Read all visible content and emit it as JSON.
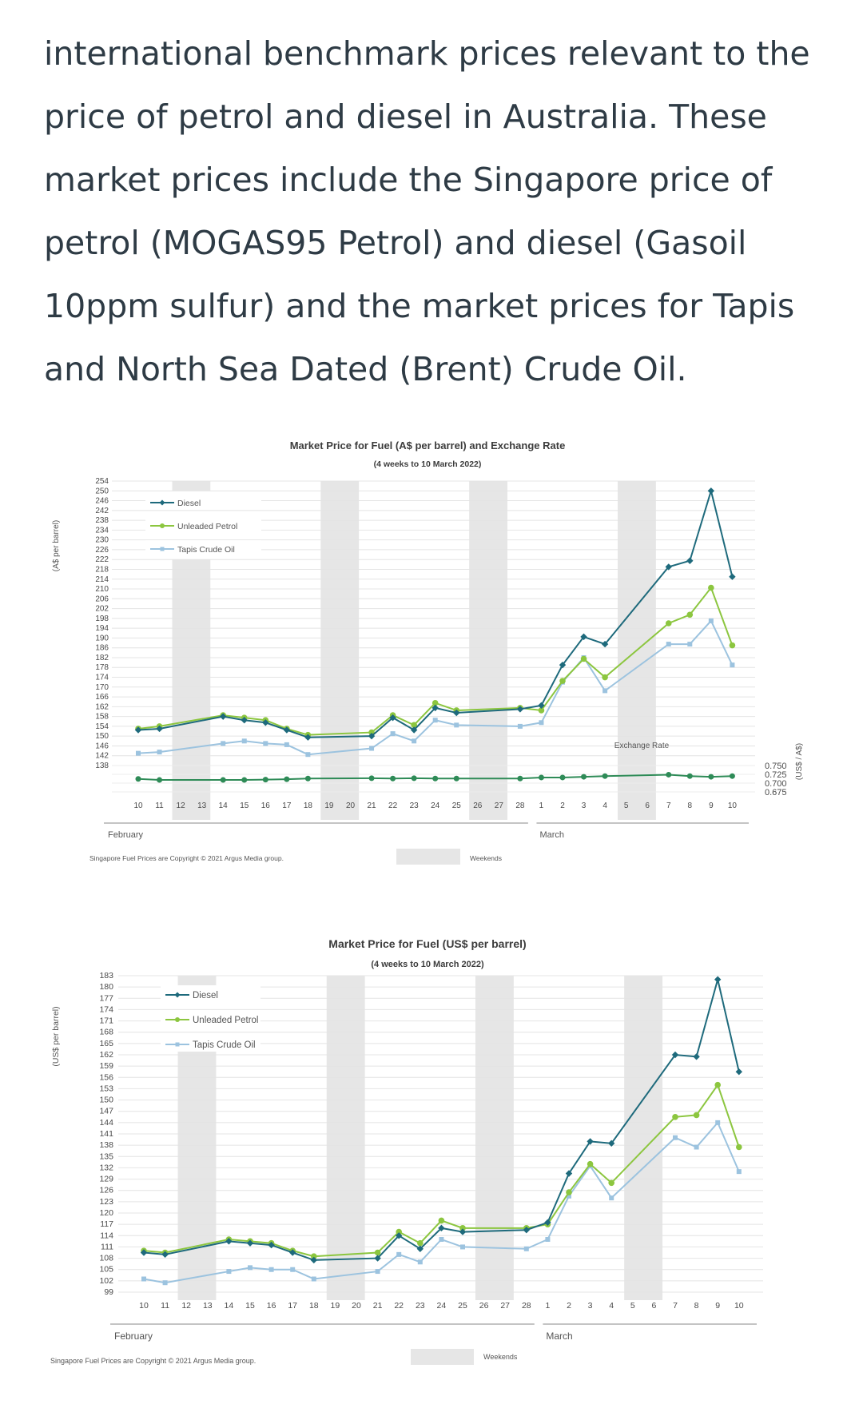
{
  "article": {
    "paragraph": "international benchmark prices relevant to the price of petrol and diesel in Australia. These market prices include the Singapore price of petrol (MOGAS95 Petrol) and diesel (Gasoil 10ppm sulfur) and the market prices for Tapis and North Sea Dated (Brent) Crude Oil."
  },
  "colors": {
    "diesel": "#1e6a7c",
    "petrol": "#8cc63f",
    "tapis": "#9cc3df",
    "exchange": "#2e8b57",
    "weekend": "#e6e6e6"
  },
  "chart_data": [
    {
      "type": "line",
      "title": "Market Price for Fuel (A$ per barrel) and Exchange Rate",
      "subtitle": "(4 weeks to 10 March 2022)",
      "ylabel": "(A$ per barrel)",
      "y2label": "(US$ / A$)",
      "ylim": [
        138,
        254
      ],
      "y_ticks": [
        138,
        142,
        146,
        150,
        154,
        158,
        162,
        166,
        170,
        174,
        178,
        182,
        186,
        190,
        194,
        198,
        202,
        206,
        210,
        214,
        218,
        222,
        226,
        230,
        234,
        238,
        242,
        246,
        250,
        254
      ],
      "y2_ticks": [
        "0.750",
        "0.725",
        "0.700",
        "0.675"
      ],
      "y2lim": [
        0.675,
        0.75
      ],
      "categories": [
        "10",
        "11",
        "12",
        "13",
        "14",
        "15",
        "16",
        "17",
        "18",
        "19",
        "20",
        "21",
        "22",
        "23",
        "24",
        "25",
        "26",
        "27",
        "28",
        "1",
        "2",
        "3",
        "4",
        "5",
        "6",
        "7",
        "8",
        "9",
        "10"
      ],
      "month_labels": [
        "February",
        "March"
      ],
      "weekends": [
        [
          2,
          3
        ],
        [
          9,
          10
        ],
        [
          16,
          17
        ],
        [
          23,
          24
        ]
      ],
      "series": [
        {
          "name": "Diesel",
          "values": [
            152.5,
            153,
            null,
            null,
            158,
            156.5,
            155.5,
            152.5,
            149.5,
            null,
            null,
            150,
            157.5,
            152.5,
            161.5,
            159.5,
            null,
            null,
            161,
            162.5,
            179,
            190.5,
            187.5,
            null,
            null,
            219,
            221.5,
            250,
            215
          ]
        },
        {
          "name": "Unleaded Petrol",
          "values": [
            153,
            154,
            null,
            null,
            158.5,
            157.5,
            156.5,
            153,
            150.5,
            null,
            null,
            151.5,
            158.5,
            154.5,
            163.5,
            160.5,
            null,
            null,
            161.5,
            160.5,
            172.5,
            181.5,
            174,
            null,
            null,
            196,
            199.5,
            210.5,
            187
          ]
        },
        {
          "name": "Tapis Crude Oil",
          "values": [
            143,
            143.5,
            null,
            null,
            147,
            148,
            147,
            146.5,
            142.5,
            null,
            null,
            145,
            151,
            148,
            156.5,
            154.5,
            null,
            null,
            154,
            155.5,
            172,
            182,
            168.5,
            null,
            null,
            187.5,
            187.5,
            197,
            179
          ]
        }
      ],
      "exchange_rate": {
        "label": "Exchange Rate",
        "values": [
          0.712,
          0.709,
          null,
          null,
          0.709,
          0.709,
          0.71,
          0.711,
          0.713,
          null,
          null,
          0.714,
          0.713,
          0.714,
          0.713,
          0.713,
          null,
          null,
          0.713,
          0.716,
          0.716,
          0.718,
          0.72,
          null,
          null,
          0.724,
          0.72,
          0.718,
          0.72
        ]
      },
      "legend": [
        "Diesel",
        "Unleaded Petrol",
        "Tapis Crude Oil"
      ],
      "legend_position": "top-left",
      "footnote": "Singapore Fuel Prices are Copyright © 2021 Argus Media group.",
      "weekend_label": "Weekends"
    },
    {
      "type": "line",
      "title": "Market Price for Fuel (US$ per barrel)",
      "subtitle": "(4 weeks to 10 March 2022)",
      "ylabel": "(US$ per barrel)",
      "ylim": [
        99,
        183
      ],
      "y_ticks": [
        99,
        102,
        105,
        108,
        111,
        114,
        117,
        120,
        123,
        126,
        129,
        132,
        135,
        138,
        141,
        144,
        147,
        150,
        153,
        156,
        159,
        162,
        165,
        168,
        171,
        174,
        177,
        180,
        183
      ],
      "categories": [
        "10",
        "11",
        "12",
        "13",
        "14",
        "15",
        "16",
        "17",
        "18",
        "19",
        "20",
        "21",
        "22",
        "23",
        "24",
        "25",
        "26",
        "27",
        "28",
        "1",
        "2",
        "3",
        "4",
        "5",
        "6",
        "7",
        "8",
        "9",
        "10"
      ],
      "month_labels": [
        "February",
        "March"
      ],
      "weekends": [
        [
          2,
          3
        ],
        [
          9,
          10
        ],
        [
          16,
          17
        ],
        [
          23,
          24
        ]
      ],
      "series": [
        {
          "name": "Diesel",
          "values": [
            109.5,
            109,
            null,
            null,
            112.5,
            112,
            111.5,
            109.5,
            107.5,
            null,
            null,
            108,
            114,
            110.5,
            116,
            115,
            null,
            null,
            115.5,
            117.5,
            130.5,
            139,
            138.5,
            null,
            null,
            162,
            161.5,
            182,
            157.5
          ]
        },
        {
          "name": "Unleaded Petrol",
          "values": [
            110,
            109.5,
            null,
            null,
            113,
            112.5,
            112,
            110,
            108.5,
            null,
            null,
            109.5,
            115,
            112,
            118,
            116,
            null,
            null,
            116,
            117,
            125.5,
            133,
            128,
            null,
            null,
            145.5,
            146,
            154,
            137.5
          ]
        },
        {
          "name": "Tapis Crude Oil",
          "values": [
            102.5,
            101.5,
            null,
            null,
            104.5,
            105.5,
            105,
            105,
            102.5,
            null,
            null,
            104.5,
            109,
            107,
            113,
            111,
            null,
            null,
            110.5,
            113,
            124.5,
            132.5,
            124,
            null,
            null,
            140,
            137.5,
            144,
            131
          ]
        }
      ],
      "legend": [
        "Diesel",
        "Unleaded Petrol",
        "Tapis Crude Oil"
      ],
      "legend_position": "top-left",
      "footnote": "Singapore Fuel Prices are Copyright © 2021 Argus Media group.",
      "weekend_label": "Weekends"
    }
  ]
}
